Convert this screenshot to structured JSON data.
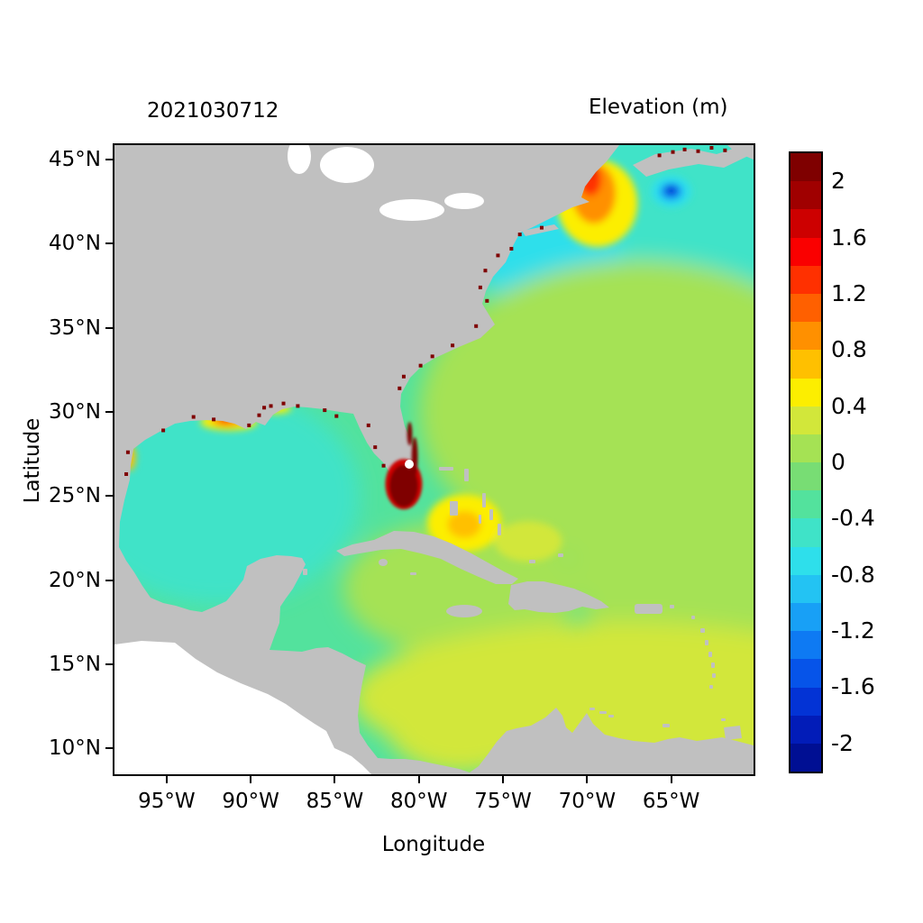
{
  "chart_data": {
    "type": "heatmap",
    "title": "Elevation (m)",
    "subtitle": "2021030712",
    "xlabel": "Longitude",
    "ylabel": "Latitude",
    "x_ticks": [
      {
        "label": "95°W",
        "lon": -95
      },
      {
        "label": "90°W",
        "lon": -90
      },
      {
        "label": "85°W",
        "lon": -85
      },
      {
        "label": "80°W",
        "lon": -80
      },
      {
        "label": "75°W",
        "lon": -75
      },
      {
        "label": "70°W",
        "lon": -70
      },
      {
        "label": "65°W",
        "lon": -65
      }
    ],
    "y_ticks": [
      {
        "label": "45°N",
        "lat": 45
      },
      {
        "label": "40°N",
        "lat": 40
      },
      {
        "label": "35°N",
        "lat": 35
      },
      {
        "label": "30°N",
        "lat": 30
      },
      {
        "label": "25°N",
        "lat": 25
      },
      {
        "label": "20°N",
        "lat": 20
      },
      {
        "label": "15°N",
        "lat": 15
      },
      {
        "label": "10°N",
        "lat": 10
      }
    ],
    "lon_range": [
      -98.1,
      -60.1
    ],
    "lat_range": [
      8.4,
      45.9
    ],
    "grid": false,
    "colorbar": {
      "position": "right",
      "min": -2.2,
      "max": 2.2,
      "step": 0.2,
      "tick_values": [
        2,
        1.6,
        1.2,
        0.8,
        0.4,
        0,
        -0.4,
        -0.8,
        -1.2,
        -1.6,
        -2
      ],
      "colors_top_to_bottom": [
        "#7f0000",
        "#a00000",
        "#cd0000",
        "#fa0000",
        "#ff3000",
        "#ff6000",
        "#ff9000",
        "#ffc000",
        "#fcee00",
        "#d2e73a",
        "#a5e254",
        "#78dd74",
        "#53e29d",
        "#3fe3c8",
        "#2edfeb",
        "#23c3f3",
        "#18a0f6",
        "#0e7af3",
        "#0654e9",
        "#0333d5",
        "#021cb8",
        "#000f93"
      ]
    },
    "background_value": -0.3,
    "land_color": "#c0c0c0",
    "outside_domain_color": "#ffffff",
    "regions": [
      {
        "name": "north-atlantic",
        "lon": -64.5,
        "lat": 42.5,
        "rlon": 14,
        "rlat": 7,
        "value": -0.5,
        "layer": "soft"
      },
      {
        "name": "northeast-shelf",
        "lon": -72.5,
        "lat": 39.8,
        "rlon": 4.5,
        "rlat": 3.5,
        "value": -0.6,
        "layer": "soft"
      },
      {
        "name": "central-atlantic",
        "lon": -67,
        "lat": 30,
        "rlon": 13,
        "rlat": 9,
        "value": 0.1,
        "layer": "soft"
      },
      {
        "name": "east-atlantic",
        "lon": -62,
        "lat": 22,
        "rlon": 9,
        "rlat": 9,
        "value": 0.1,
        "layer": "soft"
      },
      {
        "name": "caribbean-central",
        "lon": -77.5,
        "lat": 19.5,
        "rlon": 7,
        "rlat": 4,
        "value": 0.1,
        "layer": "soft"
      },
      {
        "name": "caribbean-south",
        "lon": -68,
        "lat": 13,
        "rlon": 16,
        "rlat": 4.5,
        "value": 0.3,
        "layer": "soft"
      },
      {
        "name": "caribbean-southwest",
        "lon": -77.5,
        "lat": 11.5,
        "rlon": 4.5,
        "rlat": 3,
        "value": 0.3,
        "layer": "soft"
      },
      {
        "name": "gulf-of-mexico",
        "lon": -92,
        "lat": 25,
        "rlon": 8.5,
        "rlat": 6.5,
        "value": -0.5,
        "layer": "soft"
      },
      {
        "name": "bahamas-yellow",
        "lon": -77.3,
        "lat": 23.4,
        "rlon": 2.2,
        "rlat": 1.7,
        "value": 0.45,
        "layer": "med"
      },
      {
        "name": "bahamas-core",
        "lon": -77.3,
        "lat": 23.3,
        "rlon": 1.0,
        "rlat": 0.8,
        "value": 0.65,
        "layer": "med"
      },
      {
        "name": "turks-patch",
        "lon": -73.5,
        "lat": 22.3,
        "rlon": 2.0,
        "rlat": 1.2,
        "value": 0.35,
        "layer": "med"
      },
      {
        "name": "gulf-of-maine-yellow",
        "lon": -69.4,
        "lat": 42.4,
        "rlon": 2.4,
        "rlat": 2.6,
        "value": 0.5,
        "layer": "med"
      },
      {
        "name": "gulf-of-maine-orange",
        "lon": -69.6,
        "lat": 43.0,
        "rlon": 1.3,
        "rlat": 1.8,
        "value": 0.9,
        "layer": "med"
      },
      {
        "name": "gulf-of-maine-core",
        "lon": -69.8,
        "lat": 43.8,
        "rlon": 0.65,
        "rlat": 0.95,
        "value": 1.3,
        "layer": "med"
      },
      {
        "name": "penobscot-red",
        "lon": -69.9,
        "lat": 44.5,
        "rlon": 0.35,
        "rlat": 0.5,
        "value": 1.9,
        "layer": "med"
      },
      {
        "name": "nova-scotia-spot-outer",
        "lon": -65.0,
        "lat": 43.1,
        "rlon": 1.2,
        "rlat": 0.95,
        "value": -0.7,
        "layer": "med"
      },
      {
        "name": "nova-scotia-spot-mid",
        "lon": -65.0,
        "lat": 43.1,
        "rlon": 0.7,
        "rlat": 0.55,
        "value": -1.1,
        "layer": "med"
      },
      {
        "name": "nova-scotia-spot-core",
        "lon": -65.0,
        "lat": 43.15,
        "rlon": 0.38,
        "rlat": 0.3,
        "value": -1.7,
        "layer": "med"
      },
      {
        "name": "louisiana-yellow",
        "lon": -91.3,
        "lat": 29.4,
        "rlon": 1.7,
        "rlat": 0.5,
        "value": 0.5,
        "layer": "med"
      },
      {
        "name": "louisiana-orange",
        "lon": -91.4,
        "lat": 29.5,
        "rlon": 0.9,
        "rlat": 0.35,
        "value": 0.9,
        "layer": "med"
      },
      {
        "name": "louisiana-red",
        "lon": -91.5,
        "lat": 29.55,
        "rlon": 0.35,
        "rlat": 0.2,
        "value": 1.6,
        "layer": "med"
      },
      {
        "name": "mississippi-sound",
        "lon": -88.5,
        "lat": 30.2,
        "rlon": 0.9,
        "rlat": 0.3,
        "value": 0.5,
        "layer": "med"
      },
      {
        "name": "texas-lagoon",
        "lon": -97.2,
        "lat": 27.3,
        "rlon": 0.35,
        "rlat": 0.8,
        "value": 0.8,
        "layer": "med"
      },
      {
        "name": "florida-halo",
        "lon": -80.9,
        "lat": 25.7,
        "rlon": 1.1,
        "rlat": 1.5,
        "value": 1.7,
        "layer": "overlay"
      },
      {
        "name": "florida-everglades",
        "lon": -80.9,
        "lat": 25.6,
        "rlon": 0.85,
        "rlat": 1.25,
        "value": 2.2,
        "layer": "overlay"
      },
      {
        "name": "florida-east-coast-streak",
        "lon": -80.25,
        "lat": 27.3,
        "rlon": 0.18,
        "rlat": 1.2,
        "value": 2.2,
        "layer": "overlay"
      },
      {
        "name": "indian-river-streak",
        "lon": -80.55,
        "lat": 28.7,
        "rlon": 0.15,
        "rlat": 0.7,
        "value": 2.2,
        "layer": "overlay"
      }
    ],
    "coastal_hotspots": {
      "value": 2.2,
      "points": [
        [
          -97.3,
          27.6
        ],
        [
          -97.4,
          26.3
        ],
        [
          -95.2,
          28.9
        ],
        [
          -93.4,
          29.7
        ],
        [
          -92.2,
          29.55
        ],
        [
          -90.1,
          29.2
        ],
        [
          -89.5,
          29.8
        ],
        [
          -89.2,
          30.25
        ],
        [
          -88.8,
          30.35
        ],
        [
          -88.05,
          30.5
        ],
        [
          -87.2,
          30.35
        ],
        [
          -85.6,
          30.1
        ],
        [
          -84.9,
          29.75
        ],
        [
          -83.0,
          29.2
        ],
        [
          -82.6,
          27.9
        ],
        [
          -82.1,
          26.8
        ],
        [
          -81.15,
          31.4
        ],
        [
          -80.9,
          32.1
        ],
        [
          -79.9,
          32.75
        ],
        [
          -79.2,
          33.3
        ],
        [
          -78.0,
          33.95
        ],
        [
          -76.6,
          35.1
        ],
        [
          -75.95,
          36.6
        ],
        [
          -76.35,
          37.4
        ],
        [
          -76.05,
          38.4
        ],
        [
          -75.3,
          39.3
        ],
        [
          -74.5,
          39.7
        ],
        [
          -74.0,
          40.55
        ],
        [
          -72.7,
          40.95
        ],
        [
          -65.7,
          45.25
        ],
        [
          -64.9,
          45.45
        ],
        [
          -64.2,
          45.6
        ],
        [
          -63.4,
          45.5
        ],
        [
          -62.6,
          45.7
        ],
        [
          -61.8,
          45.55
        ]
      ]
    }
  }
}
